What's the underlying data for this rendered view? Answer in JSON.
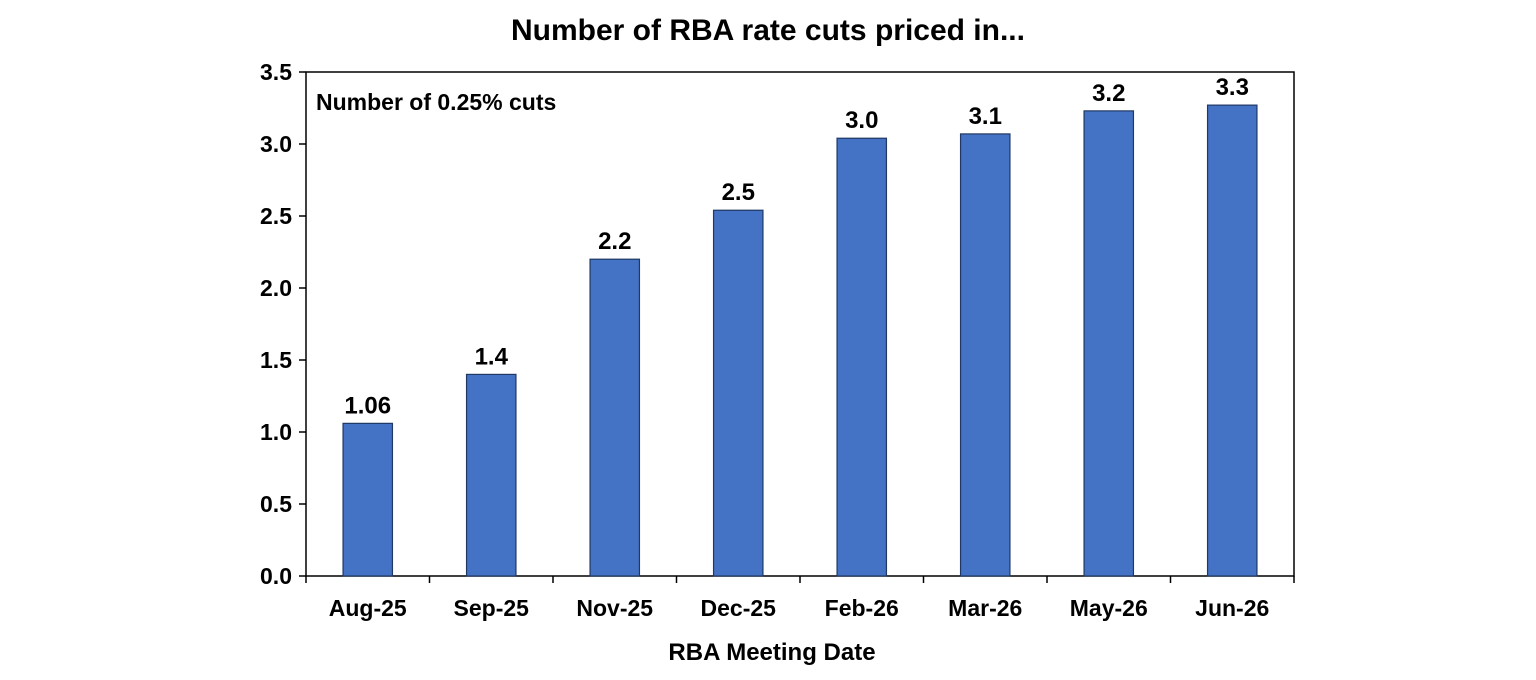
{
  "chart_data": {
    "type": "bar",
    "title": "Number of RBA rate cuts priced in...",
    "xlabel": "RBA Meeting Date",
    "ylabel": "",
    "annotation": "Number of 0.25% cuts",
    "categories": [
      "Aug-25",
      "Sep-25",
      "Nov-25",
      "Dec-25",
      "Feb-26",
      "Mar-26",
      "May-26",
      "Jun-26"
    ],
    "values": [
      1.06,
      1.4,
      2.2,
      2.54,
      3.04,
      3.07,
      3.23,
      3.27
    ],
    "data_labels": [
      "1.06",
      "1.4",
      "2.2",
      "2.5",
      "3.0",
      "3.1",
      "3.2",
      "3.3"
    ],
    "ylim": [
      0,
      3.5
    ],
    "yticks": [
      "0.0",
      "0.5",
      "1.0",
      "1.5",
      "2.0",
      "2.5",
      "3.0",
      "3.5"
    ],
    "ytick_values": [
      0,
      0.5,
      1.0,
      1.5,
      2.0,
      2.5,
      3.0,
      3.5
    ],
    "grid": false,
    "legend": "none",
    "bar_color": "#4472C4",
    "bar_edge_color": "#1F3864"
  }
}
